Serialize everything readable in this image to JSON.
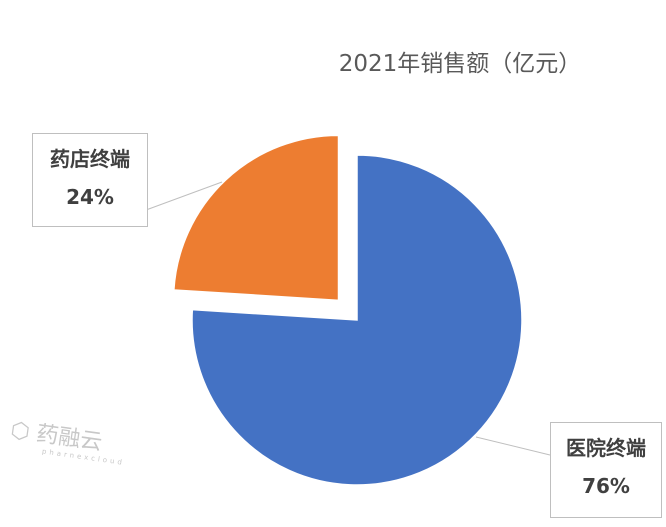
{
  "chart_data": {
    "type": "pie",
    "title": "2021年销售额（亿元）",
    "slices": [
      {
        "label": "医院终端",
        "value": 76,
        "value_label": "76%",
        "color": "#4472C4"
      },
      {
        "label": "药店终端",
        "value": 24,
        "value_label": "24%",
        "color": "#ED7D31",
        "exploded": true
      }
    ],
    "legend": "none"
  },
  "watermark": {
    "text": "药融云",
    "subtext": "pharnexcloud"
  }
}
